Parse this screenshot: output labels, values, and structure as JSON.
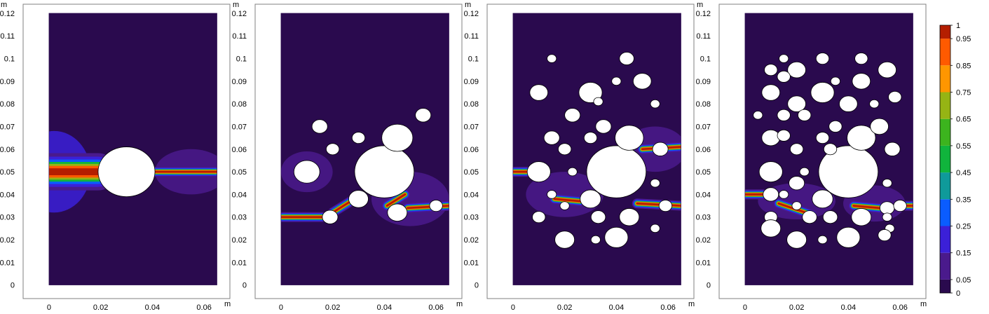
{
  "chart_data": {
    "type": "heatmap",
    "unit_x": "m",
    "unit_y": "m",
    "xlim": [
      -0.01,
      0.07
    ],
    "ylim": [
      -0.006,
      0.124
    ],
    "x_ticks": [
      0,
      0.02,
      0.04,
      0.06
    ],
    "x_tick_labels": [
      "0",
      "0.02",
      "0.04",
      "0.06"
    ],
    "y_ticks": [
      0,
      0.01,
      0.02,
      0.03,
      0.04,
      0.05,
      0.06,
      0.07,
      0.08,
      0.09,
      0.1,
      0.11,
      0.12
    ],
    "y_tick_labels": [
      "0",
      "0.01",
      "0.02",
      "0.03",
      "0.04",
      "0.05",
      "0.06",
      "0.07",
      "0.08",
      "0.09",
      "0.1",
      "0.11",
      "0.12"
    ],
    "domain": {
      "xmin": 0,
      "xmax": 0.065,
      "ymin": 0,
      "ymax": 0.12
    },
    "colorbar": {
      "ticks": [
        0,
        0.05,
        0.15,
        0.25,
        0.35,
        0.45,
        0.55,
        0.65,
        0.75,
        0.85,
        0.95,
        1
      ],
      "tick_labels": [
        "0",
        "0.05",
        "0.15",
        "0.25",
        "0.35",
        "0.45",
        "0.55",
        "0.65",
        "0.75",
        "0.85",
        "0.95",
        "1"
      ],
      "colors": [
        "#2a0a4e",
        "#4a1a8c",
        "#3b20d8",
        "#0a5cff",
        "#0f9a9a",
        "#10b43c",
        "#3cb41e",
        "#96b414",
        "#ff9600",
        "#ff5a00",
        "#b41e00"
      ]
    },
    "panels": [
      {
        "holes": [
          {
            "cx": 0.03,
            "cy": 0.05,
            "r": 0.011
          }
        ],
        "cracks": [
          {
            "x1": 0.0,
            "y1": 0.05,
            "x2": 0.019,
            "y2": 0.05,
            "w": 0.0045
          },
          {
            "x1": 0.041,
            "y1": 0.05,
            "x2": 0.065,
            "y2": 0.05,
            "w": 0.0012
          }
        ],
        "damage": [
          {
            "cx": 0.002,
            "cy": 0.05,
            "rx": 0.014,
            "ry": 0.018,
            "level": 0.2
          },
          {
            "cx": 0.055,
            "cy": 0.05,
            "rx": 0.014,
            "ry": 0.01,
            "level": 0.1
          }
        ]
      },
      {
        "holes": [
          {
            "cx": 0.04,
            "cy": 0.05,
            "r": 0.0115
          },
          {
            "cx": 0.045,
            "cy": 0.065,
            "r": 0.006
          },
          {
            "cx": 0.01,
            "cy": 0.05,
            "r": 0.005
          },
          {
            "cx": 0.03,
            "cy": 0.038,
            "r": 0.0038
          },
          {
            "cx": 0.045,
            "cy": 0.032,
            "r": 0.0038
          },
          {
            "cx": 0.019,
            "cy": 0.03,
            "r": 0.003
          },
          {
            "cx": 0.055,
            "cy": 0.075,
            "r": 0.003
          },
          {
            "cx": 0.015,
            "cy": 0.07,
            "r": 0.003
          },
          {
            "cx": 0.03,
            "cy": 0.065,
            "r": 0.0025
          },
          {
            "cx": 0.02,
            "cy": 0.06,
            "r": 0.0025
          },
          {
            "cx": 0.06,
            "cy": 0.035,
            "r": 0.0025
          }
        ],
        "cracks": [
          {
            "x1": 0.0,
            "y1": 0.03,
            "x2": 0.016,
            "y2": 0.03,
            "w": 0.0012
          },
          {
            "x1": 0.02,
            "y1": 0.032,
            "x2": 0.027,
            "y2": 0.037,
            "w": 0.0012
          },
          {
            "x1": 0.041,
            "y1": 0.035,
            "x2": 0.048,
            "y2": 0.04,
            "w": 0.0012
          },
          {
            "x1": 0.049,
            "y1": 0.034,
            "x2": 0.065,
            "y2": 0.035,
            "w": 0.0012
          }
        ],
        "damage": [
          {
            "cx": 0.01,
            "cy": 0.05,
            "rx": 0.01,
            "ry": 0.009,
            "level": 0.1
          },
          {
            "cx": 0.05,
            "cy": 0.038,
            "rx": 0.015,
            "ry": 0.012,
            "level": 0.1
          }
        ]
      },
      {
        "holes": [
          {
            "cx": 0.04,
            "cy": 0.05,
            "r": 0.0115
          },
          {
            "cx": 0.045,
            "cy": 0.065,
            "r": 0.0055
          },
          {
            "cx": 0.01,
            "cy": 0.05,
            "r": 0.0045
          },
          {
            "cx": 0.01,
            "cy": 0.085,
            "r": 0.0035
          },
          {
            "cx": 0.03,
            "cy": 0.085,
            "r": 0.0045
          },
          {
            "cx": 0.05,
            "cy": 0.09,
            "r": 0.0035
          },
          {
            "cx": 0.044,
            "cy": 0.1,
            "r": 0.0028
          },
          {
            "cx": 0.015,
            "cy": 0.1,
            "r": 0.0018
          },
          {
            "cx": 0.04,
            "cy": 0.09,
            "r": 0.0018
          },
          {
            "cx": 0.033,
            "cy": 0.081,
            "r": 0.0018
          },
          {
            "cx": 0.055,
            "cy": 0.08,
            "r": 0.0018
          },
          {
            "cx": 0.023,
            "cy": 0.075,
            "r": 0.003
          },
          {
            "cx": 0.035,
            "cy": 0.07,
            "r": 0.003
          },
          {
            "cx": 0.015,
            "cy": 0.065,
            "r": 0.003
          },
          {
            "cx": 0.03,
            "cy": 0.065,
            "r": 0.0025
          },
          {
            "cx": 0.02,
            "cy": 0.06,
            "r": 0.0025
          },
          {
            "cx": 0.057,
            "cy": 0.06,
            "r": 0.003
          },
          {
            "cx": 0.023,
            "cy": 0.05,
            "r": 0.0018
          },
          {
            "cx": 0.03,
            "cy": 0.038,
            "r": 0.004
          },
          {
            "cx": 0.015,
            "cy": 0.04,
            "r": 0.0018
          },
          {
            "cx": 0.02,
            "cy": 0.035,
            "r": 0.0018
          },
          {
            "cx": 0.055,
            "cy": 0.045,
            "r": 0.0018
          },
          {
            "cx": 0.059,
            "cy": 0.035,
            "r": 0.0025
          },
          {
            "cx": 0.045,
            "cy": 0.03,
            "r": 0.0038
          },
          {
            "cx": 0.033,
            "cy": 0.03,
            "r": 0.0028
          },
          {
            "cx": 0.01,
            "cy": 0.03,
            "r": 0.0025
          },
          {
            "cx": 0.055,
            "cy": 0.025,
            "r": 0.0018
          },
          {
            "cx": 0.02,
            "cy": 0.02,
            "r": 0.0038
          },
          {
            "cx": 0.032,
            "cy": 0.02,
            "r": 0.0018
          },
          {
            "cx": 0.04,
            "cy": 0.021,
            "r": 0.0045
          }
        ],
        "cracks": [
          {
            "x1": 0.0,
            "y1": 0.05,
            "x2": 0.006,
            "y2": 0.05,
            "w": 0.0012
          },
          {
            "x1": 0.016,
            "y1": 0.038,
            "x2": 0.026,
            "y2": 0.037,
            "w": 0.0012
          },
          {
            "x1": 0.05,
            "y1": 0.06,
            "x2": 0.065,
            "y2": 0.061,
            "w": 0.0012
          },
          {
            "x1": 0.048,
            "y1": 0.036,
            "x2": 0.065,
            "y2": 0.035,
            "w": 0.0012
          }
        ],
        "damage": [
          {
            "cx": 0.02,
            "cy": 0.04,
            "rx": 0.015,
            "ry": 0.01,
            "level": 0.1
          },
          {
            "cx": 0.055,
            "cy": 0.06,
            "rx": 0.012,
            "ry": 0.01,
            "level": 0.1
          }
        ]
      },
      {
        "holes": [
          {
            "cx": 0.04,
            "cy": 0.05,
            "r": 0.0115
          },
          {
            "cx": 0.045,
            "cy": 0.065,
            "r": 0.0055
          },
          {
            "cx": 0.01,
            "cy": 0.05,
            "r": 0.0045
          },
          {
            "cx": 0.01,
            "cy": 0.085,
            "r": 0.0035
          },
          {
            "cx": 0.03,
            "cy": 0.085,
            "r": 0.0045
          },
          {
            "cx": 0.02,
            "cy": 0.08,
            "r": 0.0035
          },
          {
            "cx": 0.045,
            "cy": 0.09,
            "r": 0.0035
          },
          {
            "cx": 0.055,
            "cy": 0.095,
            "r": 0.0035
          },
          {
            "cx": 0.02,
            "cy": 0.095,
            "r": 0.0035
          },
          {
            "cx": 0.01,
            "cy": 0.095,
            "r": 0.0025
          },
          {
            "cx": 0.015,
            "cy": 0.1,
            "r": 0.0018
          },
          {
            "cx": 0.03,
            "cy": 0.1,
            "r": 0.0025
          },
          {
            "cx": 0.045,
            "cy": 0.1,
            "r": 0.0025
          },
          {
            "cx": 0.035,
            "cy": 0.09,
            "r": 0.0018
          },
          {
            "cx": 0.04,
            "cy": 0.08,
            "r": 0.0035
          },
          {
            "cx": 0.05,
            "cy": 0.08,
            "r": 0.0018
          },
          {
            "cx": 0.058,
            "cy": 0.083,
            "r": 0.0025
          },
          {
            "cx": 0.015,
            "cy": 0.092,
            "r": 0.0025
          },
          {
            "cx": 0.005,
            "cy": 0.075,
            "r": 0.0018
          },
          {
            "cx": 0.015,
            "cy": 0.075,
            "r": 0.0025
          },
          {
            "cx": 0.023,
            "cy": 0.075,
            "r": 0.0025
          },
          {
            "cx": 0.035,
            "cy": 0.07,
            "r": 0.0025
          },
          {
            "cx": 0.052,
            "cy": 0.07,
            "r": 0.0035
          },
          {
            "cx": 0.01,
            "cy": 0.065,
            "r": 0.0035
          },
          {
            "cx": 0.015,
            "cy": 0.066,
            "r": 0.0025
          },
          {
            "cx": 0.03,
            "cy": 0.065,
            "r": 0.0025
          },
          {
            "cx": 0.02,
            "cy": 0.06,
            "r": 0.0025
          },
          {
            "cx": 0.057,
            "cy": 0.06,
            "r": 0.003
          },
          {
            "cx": 0.033,
            "cy": 0.06,
            "r": 0.0025
          },
          {
            "cx": 0.023,
            "cy": 0.05,
            "r": 0.0018
          },
          {
            "cx": 0.02,
            "cy": 0.045,
            "r": 0.003
          },
          {
            "cx": 0.01,
            "cy": 0.04,
            "r": 0.003
          },
          {
            "cx": 0.015,
            "cy": 0.04,
            "r": 0.0018
          },
          {
            "cx": 0.03,
            "cy": 0.038,
            "r": 0.004
          },
          {
            "cx": 0.055,
            "cy": 0.045,
            "r": 0.0018
          },
          {
            "cx": 0.02,
            "cy": 0.035,
            "r": 0.0018
          },
          {
            "cx": 0.055,
            "cy": 0.034,
            "r": 0.0028
          },
          {
            "cx": 0.06,
            "cy": 0.035,
            "r": 0.0025
          },
          {
            "cx": 0.045,
            "cy": 0.03,
            "r": 0.0038
          },
          {
            "cx": 0.033,
            "cy": 0.03,
            "r": 0.0028
          },
          {
            "cx": 0.025,
            "cy": 0.03,
            "r": 0.0028
          },
          {
            "cx": 0.01,
            "cy": 0.03,
            "r": 0.0025
          },
          {
            "cx": 0.055,
            "cy": 0.03,
            "r": 0.0018
          },
          {
            "cx": 0.01,
            "cy": 0.025,
            "r": 0.0038
          },
          {
            "cx": 0.056,
            "cy": 0.025,
            "r": 0.0018
          },
          {
            "cx": 0.054,
            "cy": 0.022,
            "r": 0.0025
          },
          {
            "cx": 0.02,
            "cy": 0.02,
            "r": 0.0038
          },
          {
            "cx": 0.03,
            "cy": 0.02,
            "r": 0.0018
          },
          {
            "cx": 0.04,
            "cy": 0.021,
            "r": 0.0045
          }
        ],
        "cracks": [
          {
            "x1": 0.0,
            "y1": 0.04,
            "x2": 0.007,
            "y2": 0.04,
            "w": 0.0012
          },
          {
            "x1": 0.013,
            "y1": 0.036,
            "x2": 0.026,
            "y2": 0.031,
            "w": 0.0012
          },
          {
            "x1": 0.042,
            "y1": 0.035,
            "x2": 0.052,
            "y2": 0.034,
            "w": 0.0012
          },
          {
            "x1": 0.062,
            "y1": 0.035,
            "x2": 0.065,
            "y2": 0.035,
            "w": 0.0012
          }
        ],
        "damage": [
          {
            "cx": 0.02,
            "cy": 0.037,
            "rx": 0.015,
            "ry": 0.008,
            "level": 0.1
          },
          {
            "cx": 0.05,
            "cy": 0.036,
            "rx": 0.012,
            "ry": 0.008,
            "level": 0.1
          }
        ]
      }
    ]
  }
}
